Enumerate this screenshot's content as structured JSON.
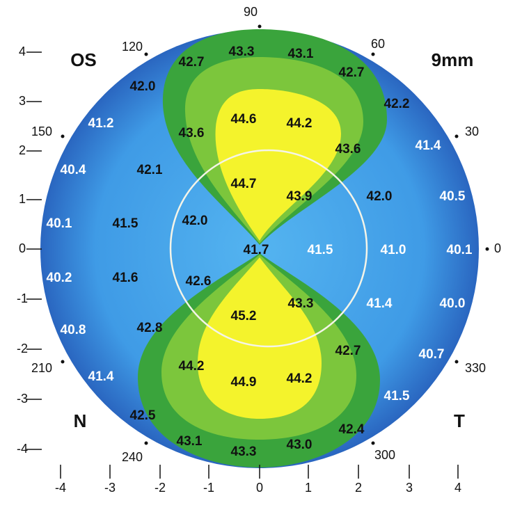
{
  "labels": {
    "eye": "OS",
    "scale": "9mm",
    "nasal": "N",
    "temporal": "T"
  },
  "angles": [
    "90",
    "60",
    "30",
    "0",
    "330",
    "300",
    "240",
    "210",
    "150",
    "120"
  ],
  "x_axis": [
    "-4",
    "-3",
    "-2",
    "-1",
    "0",
    "1",
    "2",
    "3",
    "4"
  ],
  "y_axis": [
    "4",
    "3",
    "2",
    "1",
    "0",
    "-1",
    "-2",
    "-3",
    "-4"
  ],
  "readings": [
    "42.7",
    "43.3",
    "43.1",
    "42.7",
    "42.0",
    "42.2",
    "41.2",
    "43.6",
    "44.6",
    "44.2",
    "43.6",
    "41.4",
    "40.4",
    "42.1",
    "44.7",
    "43.9",
    "42.0",
    "40.5",
    "40.1",
    "41.5",
    "42.0",
    "41.7",
    "41.5",
    "41.0",
    "40.1",
    "40.2",
    "41.6",
    "42.6",
    "43.3",
    "45.2",
    "41.4",
    "40.0",
    "40.8",
    "42.8",
    "42.7",
    "40.7",
    "44.2",
    "44.9",
    "44.2",
    "41.4",
    "41.5",
    "42.5",
    "42.4",
    "43.1",
    "43.3",
    "43.0"
  ]
}
